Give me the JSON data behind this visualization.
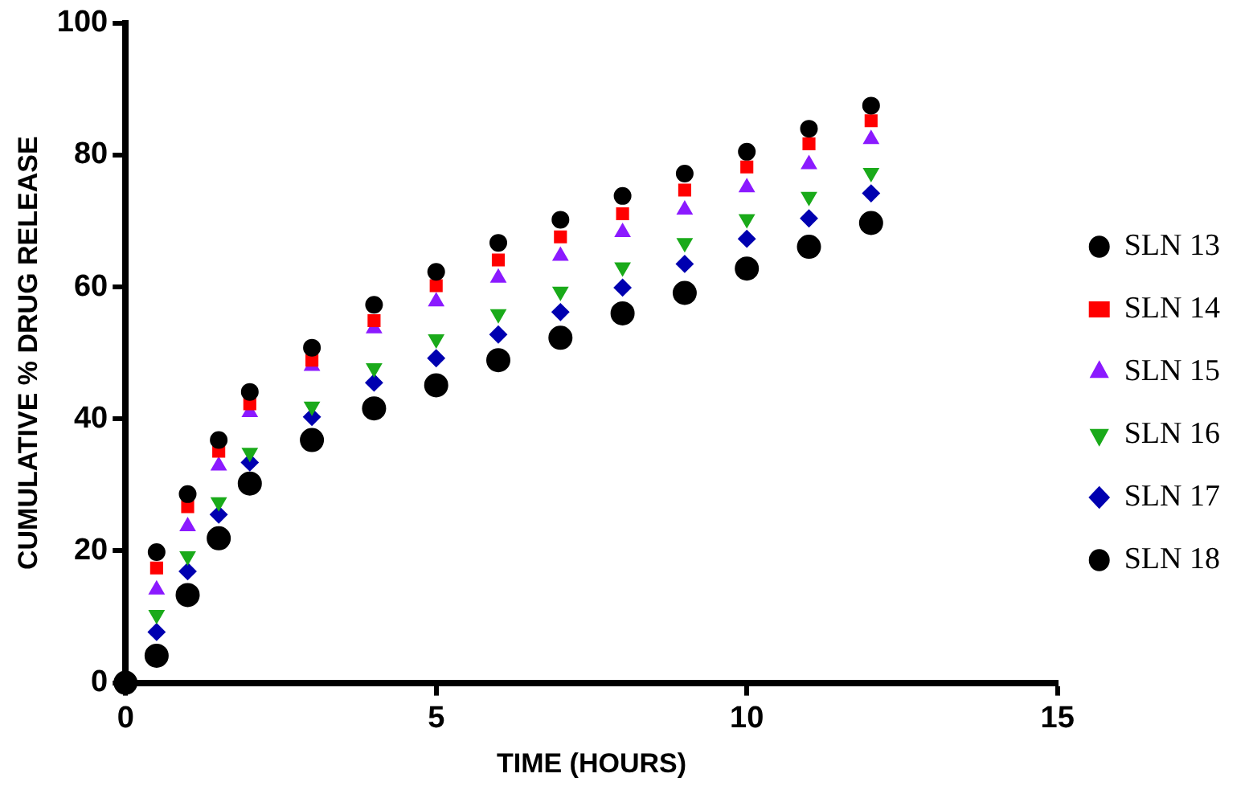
{
  "chart_data": {
    "type": "scatter",
    "xlabel": "TIME (HOURS)",
    "ylabel": "CUMULATIVE % DRUG RELEASE",
    "x": [
      0,
      0.5,
      1,
      1.5,
      2,
      3,
      4,
      5,
      6,
      7,
      8,
      9,
      10,
      11,
      12
    ],
    "series": [
      {
        "name": "SLN 13",
        "color": "#000000",
        "marker": "circle",
        "values": [
          null,
          19.8,
          28.6,
          36.8,
          44.1,
          50.8,
          57.3,
          62.3,
          66.7,
          70.2,
          73.8,
          77.2,
          80.5,
          84,
          87.5
        ]
      },
      {
        "name": "SLN 14",
        "color": "#ff0000",
        "marker": "square",
        "values": [
          null,
          17.4,
          26.7,
          35.1,
          42.3,
          48.9,
          54.9,
          60.2,
          64.1,
          67.6,
          71.1,
          74.7,
          78.2,
          81.7,
          85.2
        ]
      },
      {
        "name": "SLN 15",
        "color": "#8b1aff",
        "marker": "triangle",
        "values": [
          null,
          14.1,
          23.7,
          32.9,
          41,
          48,
          53.7,
          57.8,
          61.4,
          64.7,
          68.3,
          71.7,
          75.1,
          78.6,
          82.4
        ]
      },
      {
        "name": "SLN 16",
        "color": "#1aaa1a",
        "marker": "triangle-down",
        "values": [
          null,
          10.3,
          19.2,
          27.4,
          34.9,
          41.9,
          47.7,
          52.1,
          55.9,
          59.3,
          63,
          66.7,
          70.3,
          73.7,
          77.3
        ]
      },
      {
        "name": "SLN 17",
        "color": "#0000b0",
        "marker": "diamond",
        "values": [
          null,
          7.7,
          16.9,
          25.5,
          33.4,
          40.3,
          45.5,
          49.2,
          52.8,
          56.2,
          59.9,
          63.5,
          67.3,
          70.4,
          74.2
        ]
      },
      {
        "name": "SLN 18",
        "color": "#000000",
        "marker": "circle",
        "values": [
          0,
          4.1,
          13.3,
          21.9,
          30.2,
          36.8,
          41.6,
          45.1,
          48.9,
          52.3,
          56,
          59.1,
          62.8,
          66.1,
          69.7
        ]
      }
    ],
    "xlim": [
      0,
      15
    ],
    "xticks": [
      0,
      5,
      10,
      15
    ],
    "ylim": [
      0,
      100
    ],
    "yticks": [
      0,
      20,
      40,
      60,
      80,
      100
    ],
    "grid": false,
    "legend": "right"
  }
}
